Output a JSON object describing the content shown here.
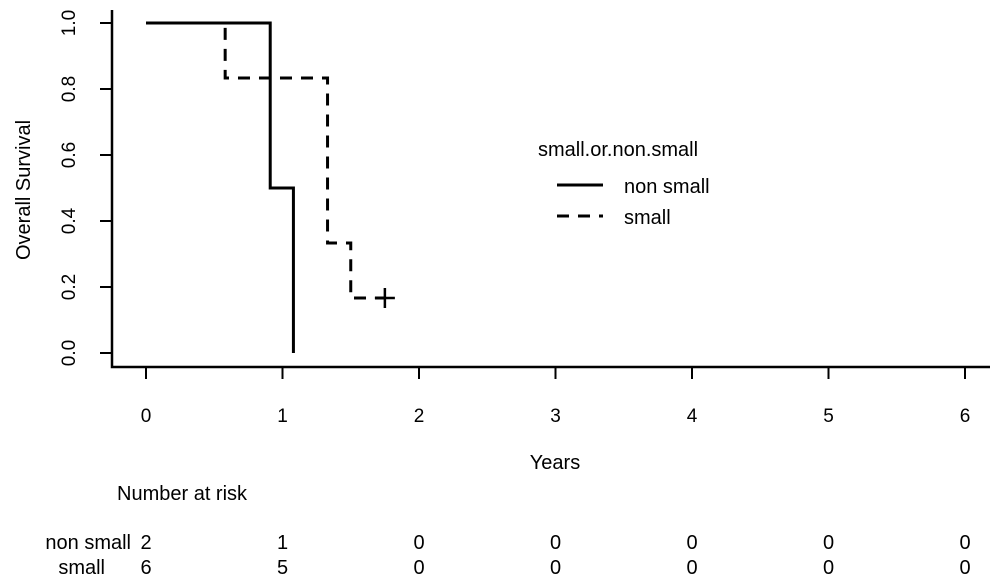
{
  "chart_data": {
    "type": "line",
    "subtype": "kaplan-meier",
    "title": "",
    "xlabel": "Years",
    "ylabel": "Overall Survival",
    "xlim": [
      0,
      6
    ],
    "ylim": [
      0,
      1
    ],
    "x_ticks": [
      0,
      1,
      2,
      3,
      4,
      5,
      6
    ],
    "y_ticks": [
      0.0,
      0.2,
      0.4,
      0.6,
      0.8,
      1.0
    ],
    "y_tick_labels": [
      "0.0",
      "0.2",
      "0.4",
      "0.6",
      "0.8",
      "1.0"
    ],
    "grid": false,
    "legend": {
      "title": "small.or.non.small",
      "placement": "center-right"
    },
    "series": [
      {
        "name": "non small",
        "line_style": "solid",
        "steps": [
          {
            "x": 0,
            "y": 1.0
          },
          {
            "x": 0.91,
            "y": 0.5
          },
          {
            "x": 1.08,
            "y": 0.0
          }
        ],
        "end_x": 1.08,
        "censored": []
      },
      {
        "name": "small",
        "line_style": "dashed",
        "steps": [
          {
            "x": 0,
            "y": 1.0
          },
          {
            "x": 0.58,
            "y": 0.8333
          },
          {
            "x": 1.33,
            "y": 0.3333
          },
          {
            "x": 1.5,
            "y": 0.1667
          }
        ],
        "end_x": 1.75,
        "censored": [
          {
            "x": 1.75,
            "y": 0.1667
          }
        ]
      }
    ],
    "risk_table": {
      "title": "Number at risk",
      "times": [
        0,
        1,
        2,
        3,
        4,
        5,
        6
      ],
      "rows": [
        {
          "label": "non small",
          "counts": [
            "2",
            "1",
            "0",
            "0",
            "0",
            "0",
            "0"
          ]
        },
        {
          "label": "small",
          "counts": [
            "6",
            "5",
            "0",
            "0",
            "0",
            "0",
            "0"
          ]
        }
      ]
    },
    "colors": {
      "line": "#000000",
      "background": "#ffffff"
    }
  }
}
